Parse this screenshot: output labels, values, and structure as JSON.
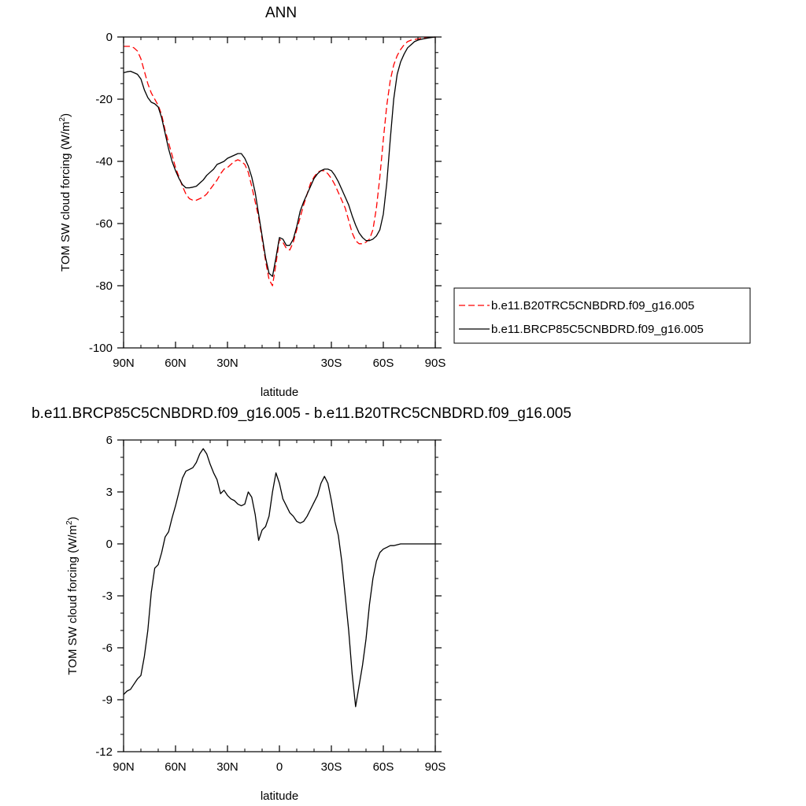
{
  "colors": {
    "series1": "#ff0000",
    "series2": "#000000",
    "axis": "#000000"
  },
  "chart_data": [
    {
      "type": "line",
      "title": "ANN",
      "xlabel": "latitude",
      "ylabel": "TOM SW cloud forcing (W/m",
      "ylabel_sup": "2",
      "ylabel_end": ")",
      "xlim": [
        90,
        -90
      ],
      "ylim": [
        -100,
        0
      ],
      "x_ticks": [
        90,
        60,
        30,
        0,
        -30,
        -60,
        -90
      ],
      "x_tick_labels": [
        "90N",
        "60N",
        "30N",
        "",
        "30S",
        "60S",
        "90S"
      ],
      "y_ticks": [
        0,
        -20,
        -40,
        -60,
        -80,
        -100
      ],
      "y_tick_labels": [
        "0",
        "-20",
        "-40",
        "-60",
        "-80",
        "-100"
      ],
      "legend_position": "right",
      "series": [
        {
          "name": "b.e11.B20TRC5CNBDRD.f09_g16.005",
          "color": "#ff0000",
          "dash": true,
          "x": [
            90,
            86,
            84,
            82,
            80,
            78,
            76,
            74,
            72,
            70,
            68,
            66,
            64,
            62,
            60,
            58,
            56,
            54,
            52,
            50,
            48,
            46,
            44,
            42,
            40,
            38,
            36,
            34,
            32,
            30,
            28,
            26,
            24,
            22,
            20,
            18,
            16,
            14,
            12,
            10,
            8,
            6,
            4,
            2,
            0,
            -2,
            -4,
            -6,
            -8,
            -10,
            -12,
            -14,
            -16,
            -18,
            -20,
            -22,
            -24,
            -26,
            -28,
            -30,
            -32,
            -34,
            -36,
            -38,
            -40,
            -42,
            -44,
            -46,
            -48,
            -50,
            -52,
            -54,
            -56,
            -58,
            -60,
            -62,
            -64,
            -66,
            -68,
            -70,
            -72,
            -74,
            -76,
            -78,
            -80,
            -82,
            -84,
            -86,
            -88,
            -90
          ],
          "y": [
            -3,
            -3,
            -3.5,
            -4.5,
            -7,
            -11,
            -15,
            -18,
            -20,
            -22,
            -25,
            -30,
            -34,
            -38,
            -42,
            -45,
            -48,
            -50.5,
            -52,
            -52.5,
            -52.5,
            -52,
            -51.5,
            -50.5,
            -49,
            -47.5,
            -46,
            -44,
            -42.5,
            -42,
            -41,
            -40,
            -39.5,
            -40,
            -41,
            -43.5,
            -48,
            -53,
            -58,
            -65,
            -72,
            -78,
            -80,
            -73,
            -65,
            -66,
            -68,
            -68.5,
            -66,
            -62,
            -58,
            -54,
            -50.5,
            -47,
            -45,
            -43.5,
            -43,
            -43,
            -44,
            -45.5,
            -47.5,
            -50,
            -52.5,
            -55,
            -59,
            -63,
            -65.5,
            -66.5,
            -66.5,
            -66,
            -65,
            -62,
            -55,
            -45,
            -33,
            -22,
            -14,
            -9,
            -6,
            -4,
            -2.5,
            -1.5,
            -1,
            -0.8,
            -0.6,
            -0.4,
            -0.3,
            -0.2,
            -0.1,
            0
          ]
        },
        {
          "name": "b.e11.BRCP85C5CNBDRD.f09_g16.005",
          "color": "#000000",
          "dash": false,
          "x": [
            90,
            88,
            86,
            84,
            82,
            80,
            78,
            76,
            74,
            72,
            70,
            68,
            66,
            64,
            62,
            60,
            58,
            56,
            54,
            52,
            50,
            48,
            46,
            44,
            42,
            40,
            38,
            36,
            34,
            32,
            30,
            28,
            26,
            24,
            22,
            20,
            18,
            16,
            14,
            12,
            10,
            8,
            6,
            4,
            2,
            0,
            -2,
            -4,
            -6,
            -8,
            -10,
            -12,
            -14,
            -16,
            -18,
            -20,
            -22,
            -24,
            -26,
            -28,
            -30,
            -32,
            -34,
            -36,
            -38,
            -40,
            -42,
            -44,
            -46,
            -48,
            -50,
            -52,
            -54,
            -56,
            -58,
            -60,
            -62,
            -64,
            -66,
            -68,
            -70,
            -72,
            -74,
            -76,
            -78,
            -80,
            -82,
            -84,
            -86,
            -88,
            -90
          ],
          "y": [
            -11.5,
            -11.2,
            -11,
            -11.5,
            -12,
            -13.5,
            -17,
            -19.5,
            -21,
            -21.5,
            -22.5,
            -26,
            -31,
            -36,
            -40,
            -43,
            -45.5,
            -47.5,
            -48.5,
            -48.5,
            -48.3,
            -48,
            -47,
            -46,
            -44.5,
            -43.5,
            -42.5,
            -41,
            -40.5,
            -40,
            -39,
            -38.5,
            -38,
            -37.5,
            -37.5,
            -39,
            -41.5,
            -45,
            -50,
            -57,
            -64,
            -71,
            -76,
            -77,
            -71,
            -64.5,
            -65,
            -67,
            -67,
            -65,
            -61,
            -56,
            -53,
            -50.5,
            -48,
            -45.5,
            -44,
            -43,
            -42.5,
            -42.5,
            -43,
            -44.5,
            -46.5,
            -49,
            -51.5,
            -54,
            -57.5,
            -60.5,
            -63,
            -64.5,
            -65.5,
            -65.5,
            -65,
            -64,
            -62,
            -57,
            -47,
            -33,
            -20,
            -12,
            -8,
            -5.5,
            -3.5,
            -2.5,
            -1.5,
            -1,
            -0.7,
            -0.5,
            -0.3,
            -0.15,
            0
          ]
        }
      ]
    },
    {
      "type": "line",
      "title": "b.e11.BRCP85C5CNBDRD.f09_g16.005 - b.e11.B20TRC5CNBDRD.f09_g16.005",
      "xlabel": "latitude",
      "ylabel": "TOM SW cloud forcing (W/m",
      "ylabel_sup": "2",
      "ylabel_end": ")",
      "xlim": [
        90,
        -90
      ],
      "ylim": [
        -12,
        6
      ],
      "x_ticks": [
        90,
        60,
        30,
        0,
        -30,
        -60,
        -90
      ],
      "x_tick_labels": [
        "90N",
        "60N",
        "30N",
        "0",
        "30S",
        "60S",
        "90S"
      ],
      "y_ticks": [
        6,
        3,
        0,
        -3,
        -6,
        -9,
        -12
      ],
      "y_tick_labels": [
        "6",
        "3",
        "0",
        "-3",
        "-6",
        "-9",
        "-12"
      ],
      "series": [
        {
          "color": "#000000",
          "dash": false,
          "x": [
            90,
            88,
            86,
            84,
            82,
            80,
            78,
            76,
            74,
            72,
            70,
            68,
            66,
            64,
            62,
            60,
            58,
            56,
            54,
            52,
            50,
            48,
            46,
            44,
            42,
            40,
            38,
            36,
            34,
            32,
            30,
            28,
            26,
            24,
            22,
            20,
            18,
            16,
            14,
            12,
            10,
            8,
            6,
            4,
            2,
            0,
            -2,
            -4,
            -6,
            -8,
            -10,
            -12,
            -14,
            -16,
            -18,
            -20,
            -22,
            -24,
            -26,
            -28,
            -30,
            -32,
            -34,
            -36,
            -38,
            -40,
            -42,
            -44,
            -46,
            -48,
            -50,
            -52,
            -54,
            -56,
            -58,
            -60,
            -62,
            -64,
            -66,
            -68,
            -70,
            -72,
            -74,
            -76,
            -78,
            -80,
            -82,
            -84,
            -86,
            -88,
            -90
          ],
          "y": [
            -8.7,
            -8.5,
            -8.4,
            -8.1,
            -7.8,
            -7.6,
            -6.5,
            -5,
            -2.8,
            -1.4,
            -1.2,
            -0.5,
            0.4,
            0.7,
            1.5,
            2.2,
            3,
            3.8,
            4.2,
            4.3,
            4.4,
            4.7,
            5.2,
            5.5,
            5.2,
            4.6,
            4.1,
            3.7,
            2.9,
            3.1,
            2.8,
            2.6,
            2.5,
            2.3,
            2.2,
            2.3,
            3,
            2.7,
            1.7,
            0.2,
            0.8,
            1.0,
            1.6,
            3,
            4.1,
            3.5,
            2.6,
            2.2,
            1.8,
            1.6,
            1.3,
            1.2,
            1.3,
            1.6,
            2,
            2.4,
            2.8,
            3.5,
            3.9,
            3.5,
            2.5,
            1.3,
            0.5,
            -1,
            -3,
            -5,
            -7.5,
            -9.4,
            -8.2,
            -7,
            -5.5,
            -3.5,
            -2,
            -1,
            -0.5,
            -0.3,
            -0.2,
            -0.1,
            -0.1,
            -0.05,
            0,
            0,
            0,
            0,
            0,
            0,
            0,
            0,
            0,
            0,
            0
          ]
        }
      ]
    }
  ]
}
